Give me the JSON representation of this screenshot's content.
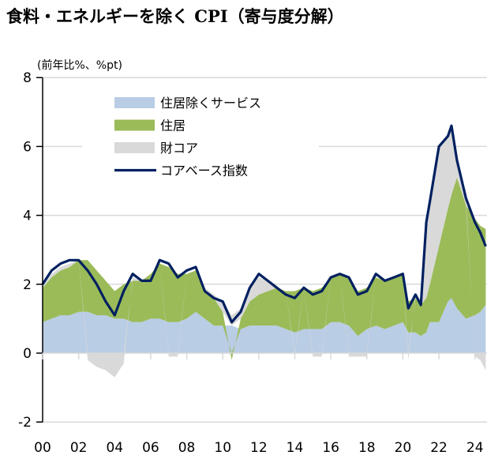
{
  "chart_data": {
    "type": "area",
    "title": "食料・エネルギーを除く CPI（寄与度分解）",
    "ylabel": "(前年比%、%pt)",
    "ylim": [
      -2,
      8
    ],
    "yticks": [
      -2,
      0,
      2,
      4,
      6,
      8
    ],
    "xlim": [
      2000,
      2024.6
    ],
    "xticks": [
      2000,
      2002,
      2004,
      2006,
      2008,
      2010,
      2012,
      2014,
      2016,
      2018,
      2020,
      2022,
      2024
    ],
    "xtick_labels": [
      "00",
      "02",
      "04",
      "06",
      "08",
      "10",
      "12",
      "14",
      "16",
      "18",
      "20",
      "22",
      "24"
    ],
    "grid": true,
    "legend_position": "top-left",
    "stacked": true,
    "x": [
      2000.0,
      2000.5,
      2001.0,
      2001.5,
      2002.0,
      2002.5,
      2003.0,
      2003.5,
      2004.0,
      2004.5,
      2005.0,
      2005.5,
      2006.0,
      2006.5,
      2007.0,
      2007.5,
      2008.0,
      2008.5,
      2009.0,
      2009.5,
      2010.0,
      2010.5,
      2011.0,
      2011.5,
      2012.0,
      2012.5,
      2013.0,
      2013.5,
      2014.0,
      2014.5,
      2015.0,
      2015.5,
      2016.0,
      2016.5,
      2017.0,
      2017.5,
      2018.0,
      2018.5,
      2019.0,
      2019.5,
      2020.0,
      2020.3,
      2020.7,
      2021.0,
      2021.3,
      2021.5,
      2022.0,
      2022.5,
      2022.7,
      2023.0,
      2023.5,
      2024.0,
      2024.3,
      2024.6
    ],
    "series": [
      {
        "name": "住居除くサービス",
        "kind": "area",
        "color": "#b9cde5",
        "values": [
          0.9,
          1.0,
          1.1,
          1.1,
          1.2,
          1.2,
          1.1,
          1.1,
          1.0,
          1.0,
          0.9,
          0.9,
          1.0,
          1.0,
          0.9,
          0.9,
          1.0,
          1.2,
          1.0,
          0.8,
          0.8,
          0.8,
          0.7,
          0.8,
          0.8,
          0.8,
          0.8,
          0.7,
          0.6,
          0.7,
          0.7,
          0.7,
          0.9,
          0.9,
          0.8,
          0.5,
          0.7,
          0.8,
          0.7,
          0.8,
          0.9,
          0.6,
          0.6,
          0.5,
          0.6,
          0.9,
          0.9,
          1.5,
          1.6,
          1.3,
          1.0,
          1.1,
          1.2,
          1.4
        ]
      },
      {
        "name": "住居",
        "kind": "area",
        "color": "#9bbb59",
        "values": [
          1.0,
          1.2,
          1.3,
          1.4,
          1.5,
          1.5,
          1.3,
          1.0,
          0.8,
          1.0,
          1.2,
          1.2,
          1.3,
          1.6,
          1.6,
          1.4,
          1.3,
          1.2,
          0.8,
          0.8,
          0.4,
          -0.2,
          0.3,
          0.7,
          0.9,
          1.0,
          1.1,
          1.1,
          1.2,
          1.2,
          1.1,
          1.2,
          1.3,
          1.4,
          1.4,
          1.3,
          1.2,
          1.4,
          1.4,
          1.4,
          1.4,
          0.9,
          1.0,
          0.9,
          1.0,
          1.1,
          2.2,
          2.7,
          3.0,
          3.8,
          3.3,
          2.8,
          2.5,
          2.2
        ]
      },
      {
        "name": "財コア",
        "kind": "area",
        "color": "#d9d9d9",
        "values": [
          0.1,
          0.1,
          0.1,
          0.1,
          0.0,
          -0.2,
          -0.4,
          -0.5,
          -0.7,
          -0.3,
          0.1,
          0.0,
          0.0,
          0.0,
          -0.1,
          -0.1,
          0.0,
          0.0,
          0.1,
          0.1,
          0.3,
          0.3,
          0.3,
          0.4,
          0.5,
          0.3,
          0.0,
          0.0,
          -0.1,
          0.0,
          -0.1,
          -0.1,
          0.0,
          0.0,
          -0.1,
          -0.1,
          -0.1,
          0.0,
          0.0,
          0.0,
          0.0,
          -0.2,
          0.1,
          0.1,
          2.0,
          2.4,
          2.9,
          2.1,
          2.0,
          0.5,
          0.2,
          -0.1,
          -0.2,
          -0.5
        ]
      },
      {
        "name": "コアベース指数",
        "kind": "line",
        "color": "#002060",
        "values": [
          2.0,
          2.4,
          2.6,
          2.7,
          2.7,
          2.4,
          2.0,
          1.5,
          1.1,
          1.8,
          2.3,
          2.1,
          2.1,
          2.7,
          2.6,
          2.2,
          2.4,
          2.5,
          1.8,
          1.6,
          1.5,
          0.9,
          1.2,
          1.9,
          2.3,
          2.1,
          1.9,
          1.7,
          1.6,
          1.9,
          1.7,
          1.8,
          2.2,
          2.3,
          2.2,
          1.7,
          1.8,
          2.3,
          2.1,
          2.2,
          2.3,
          1.3,
          1.7,
          1.4,
          3.8,
          4.4,
          6.0,
          6.3,
          6.6,
          5.6,
          4.5,
          3.8,
          3.5,
          3.1
        ]
      }
    ],
    "grid_color": "#d9d9d9"
  }
}
